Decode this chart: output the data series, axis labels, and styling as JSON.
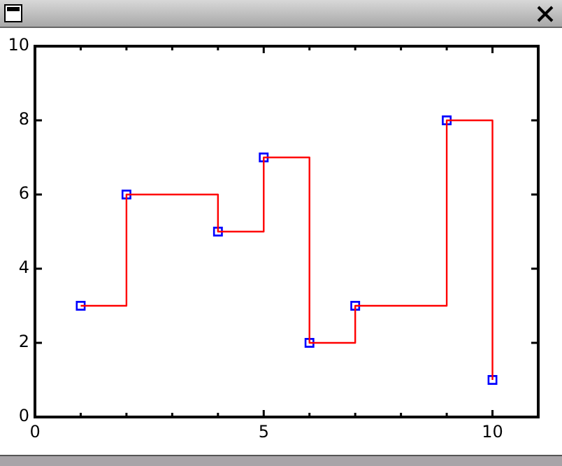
{
  "chart_data": {
    "type": "step",
    "x": [
      1,
      2,
      4,
      5,
      6,
      7,
      9,
      10
    ],
    "series": [
      {
        "color": "#ff0000",
        "marker": "none",
        "values": [
          3,
          6,
          5,
          7,
          2,
          3,
          8,
          1
        ]
      },
      {
        "type": "scatter",
        "color": "#0000ff",
        "marker": "square",
        "values": [
          3,
          6,
          5,
          7,
          2,
          3,
          8,
          1
        ]
      }
    ],
    "xlim": [
      0,
      11
    ],
    "xticks": [
      0,
      {
        "value": 1,
        "label": null
      },
      {
        "value": 2,
        "label": null
      },
      {
        "value": 3,
        "label": null
      },
      {
        "value": 4,
        "label": null
      },
      5,
      {
        "value": 6,
        "label": null
      },
      {
        "value": 7,
        "label": null
      },
      {
        "value": 8,
        "label": null
      },
      {
        "value": 9,
        "label": null
      },
      10
    ],
    "ylim": [
      0,
      10
    ],
    "yticks": [
      0,
      2,
      4,
      6,
      8,
      10
    ],
    "grid": false,
    "legend": false
  }
}
